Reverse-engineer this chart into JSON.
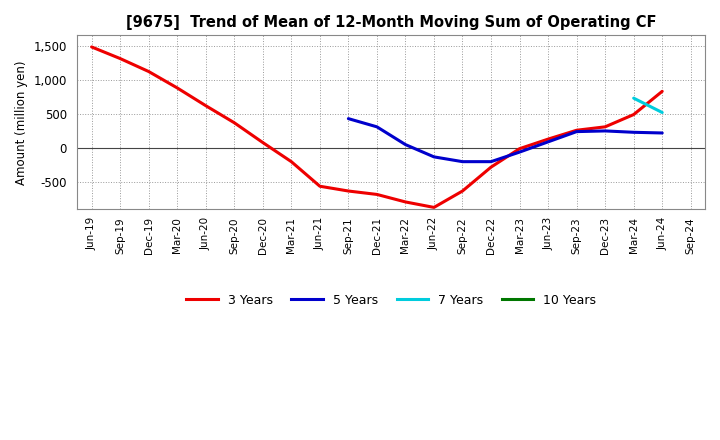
{
  "title": "[9675]  Trend of Mean of 12-Month Moving Sum of Operating CF",
  "ylabel": "Amount (million yen)",
  "background_color": "#ffffff",
  "grid_color": "#999999",
  "ylim": [
    -900,
    1650
  ],
  "yticks": [
    -500,
    0,
    500,
    1000,
    1500
  ],
  "x_labels": [
    "Jun-19",
    "Sep-19",
    "Dec-19",
    "Mar-20",
    "Jun-20",
    "Sep-20",
    "Dec-20",
    "Mar-21",
    "Jun-21",
    "Sep-21",
    "Dec-21",
    "Mar-22",
    "Jun-22",
    "Sep-22",
    "Dec-22",
    "Mar-23",
    "Jun-23",
    "Sep-23",
    "Dec-23",
    "Mar-24",
    "Jun-24",
    "Sep-24"
  ],
  "series": {
    "3 Years": {
      "color": "#ee0000",
      "y_values": [
        1480,
        1310,
        1120,
        880,
        620,
        370,
        80,
        -200,
        -560,
        -630,
        -680,
        -790,
        -870,
        -630,
        -280,
        -10,
        130,
        260,
        310,
        490,
        830,
        null
      ]
    },
    "5 Years": {
      "color": "#0000cc",
      "y_values": [
        null,
        null,
        null,
        null,
        null,
        null,
        null,
        null,
        null,
        430,
        310,
        50,
        -130,
        -200,
        -200,
        -60,
        90,
        240,
        250,
        230,
        220,
        null
      ]
    },
    "7 Years": {
      "color": "#00ccdd",
      "y_values": [
        null,
        null,
        null,
        null,
        null,
        null,
        null,
        null,
        null,
        null,
        null,
        null,
        null,
        null,
        null,
        null,
        null,
        null,
        null,
        730,
        520,
        null
      ]
    },
    "10 Years": {
      "color": "#007700",
      "y_values": [
        null,
        null,
        null,
        null,
        null,
        null,
        null,
        null,
        null,
        null,
        null,
        null,
        null,
        null,
        null,
        null,
        null,
        null,
        null,
        null,
        null,
        null
      ]
    }
  },
  "legend_order": [
    "3 Years",
    "5 Years",
    "7 Years",
    "10 Years"
  ]
}
